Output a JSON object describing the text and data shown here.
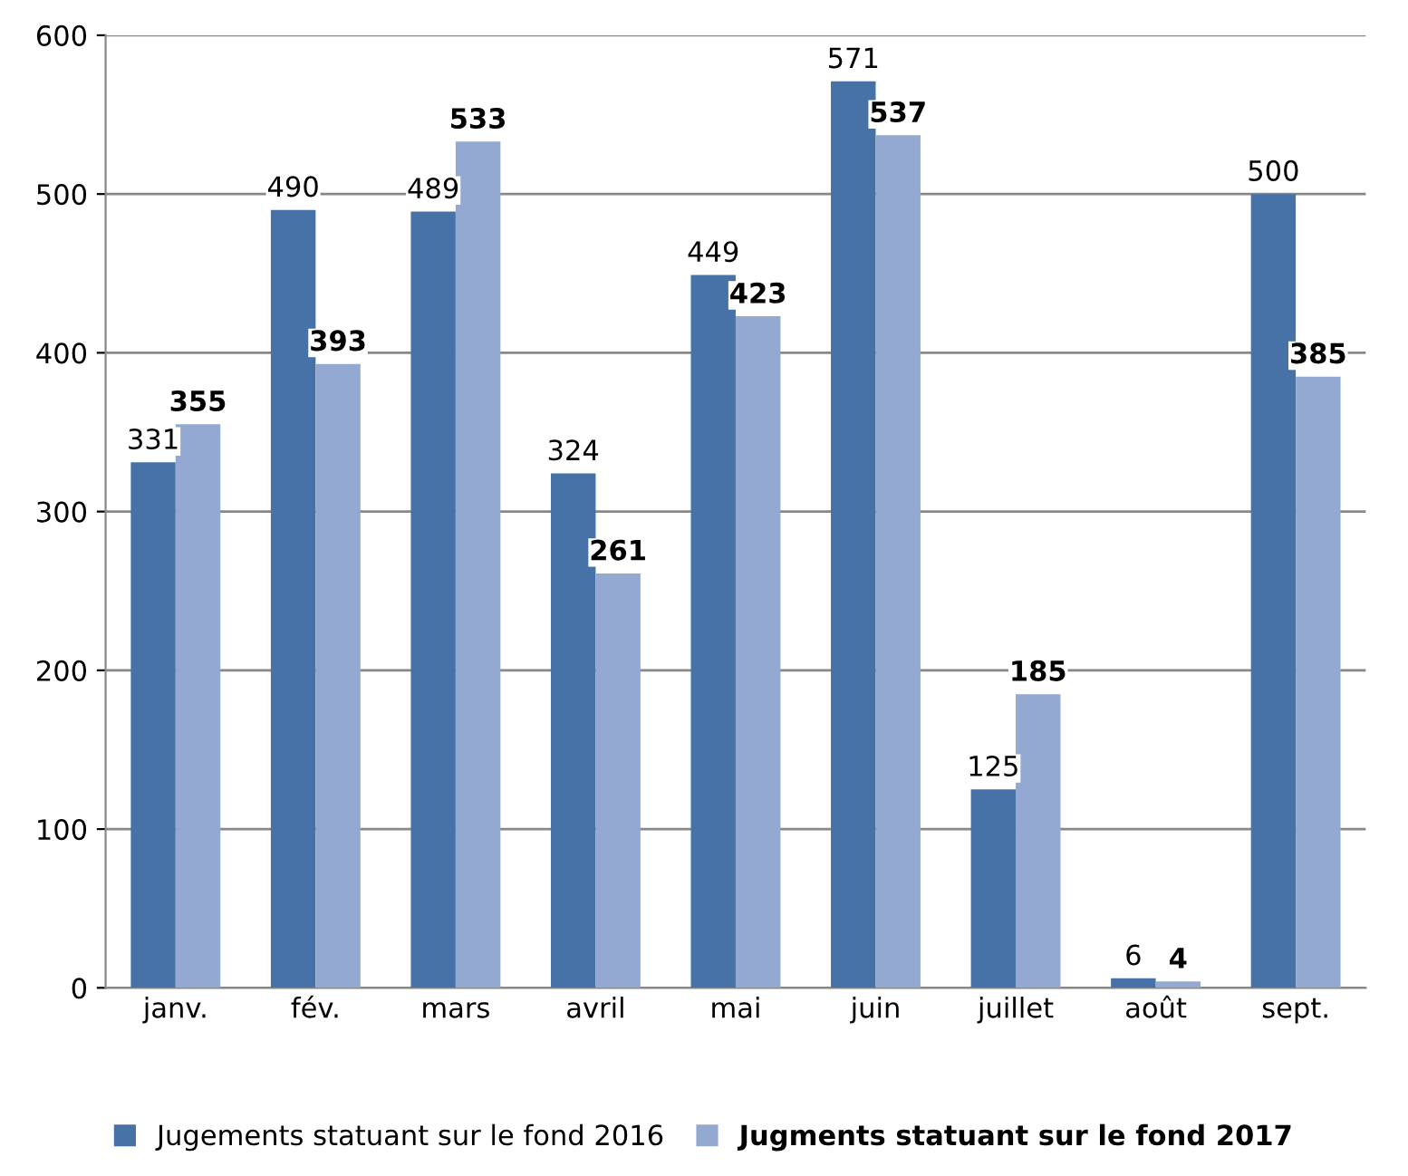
{
  "chart_data": {
    "type": "bar",
    "categories": [
      "janv.",
      "fév.",
      "mars",
      "avril",
      "mai",
      "juin",
      "juillet",
      "août",
      "sept."
    ],
    "series": [
      {
        "name": "Jugements statuant sur le fond 2016",
        "color": "#4672a8",
        "values": [
          331,
          490,
          489,
          324,
          449,
          571,
          125,
          6,
          500
        ]
      },
      {
        "name": "Jugments statuant sur le fond 2017",
        "color": "#93a9d2",
        "values": [
          355,
          393,
          533,
          261,
          423,
          537,
          185,
          4,
          385
        ]
      }
    ],
    "ylim": [
      0,
      600
    ],
    "yticks": [
      0,
      100,
      200,
      300,
      400,
      500,
      600
    ],
    "grid": "y",
    "legend": "bottom",
    "data_labels": true
  }
}
